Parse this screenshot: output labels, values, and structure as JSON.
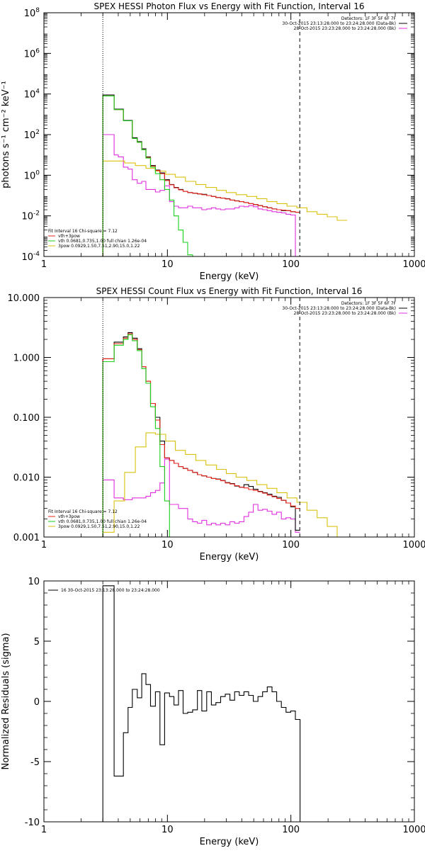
{
  "colors": {
    "data": "#000000",
    "total": "#e8231a",
    "vth": "#1bd01b",
    "bpow": "#d9c20f",
    "bk": "#e02fe0"
  },
  "chart_data": [
    {
      "type": "line",
      "title": "SPEX HESSI Photon Flux vs Energy with Fit Function, Interval 16",
      "xlabel": "Energy (keV)",
      "ylabel": "photons s⁻¹ cm⁻² keV⁻¹",
      "xscale": "log",
      "yscale": "log",
      "xlim": [
        1,
        1000
      ],
      "ylim": [
        0.0001,
        100000000
      ],
      "xticks": [
        {
          "v": 1,
          "label": "1"
        },
        {
          "v": 10,
          "label": "10"
        },
        {
          "v": 100,
          "label": "100"
        },
        {
          "v": 1000,
          "label": "1000"
        }
      ],
      "yticks": [
        {
          "v": 0.0001,
          "base": "10",
          "exp": "-4"
        },
        {
          "v": 0.01,
          "base": "10",
          "exp": "-2"
        },
        {
          "v": 1,
          "base": "10",
          "exp": "0"
        },
        {
          "v": 100,
          "base": "10",
          "exp": "2"
        },
        {
          "v": 10000,
          "base": "10",
          "exp": "4"
        },
        {
          "v": 1000000,
          "base": "10",
          "exp": "6"
        },
        {
          "v": 100000000,
          "base": "10",
          "exp": "8"
        }
      ],
      "vlines": [
        {
          "x": 3.0,
          "style": "dotted"
        },
        {
          "x": 118,
          "style": "dashed"
        }
      ],
      "header_lines": [
        {
          "text": "Detectors: 1F 3F 5F 6F 7F",
          "color": "data"
        },
        {
          "text": "30-Oct-2015 23:13:28.000 to 23:24:28.000 (Data-Bk)",
          "color": "data"
        },
        {
          "text": "28-Oct-2015 23:23:28.000 to 23:24:28.000 (Bk)",
          "color": "bk"
        }
      ],
      "legend_lines": [
        {
          "text": "Fit Interval 16   Chi-square = 7.12",
          "color": "data"
        },
        {
          "text": "vth+3pow",
          "color": "total"
        },
        {
          "text": "vth 0.0681,0.735,1.00  full chian 1.26e-04",
          "color": "vth"
        },
        {
          "text": "3pow 0.0929,1.50,7.51,2.90,15.0,1.22",
          "color": "bpow"
        }
      ],
      "edges": [
        3.0,
        3.3,
        3.7,
        4.0,
        4.4,
        4.8,
        5.2,
        5.7,
        6.2,
        6.7,
        7.3,
        8.0,
        8.7,
        9.5,
        10.4,
        11.3,
        12.3,
        13.4,
        14.6,
        16.0,
        17.5,
        19.0,
        20.8,
        22.7,
        24.7,
        27.0,
        29.4,
        32.1,
        35.0,
        38.2,
        41.7,
        45.5,
        49.6,
        54.1,
        59.0,
        64.4,
        70.3,
        76.7,
        83.7,
        91.3,
        99.6,
        108.7,
        118.6
      ],
      "series": [
        {
          "id": "data",
          "color": "data",
          "values": [
            9000,
            9000,
            1800,
            1800,
            500,
            500,
            70,
            45,
            20,
            8,
            3,
            1.8,
            1.3,
            0.6,
            0.35,
            0.25,
            0.2,
            0.16,
            0.14,
            0.13,
            0.12,
            0.115,
            0.1,
            0.09,
            0.08,
            0.075,
            0.07,
            0.06,
            0.055,
            0.05,
            0.045,
            0.04,
            0.036,
            0.032,
            0.028,
            0.025,
            0.022,
            0.02,
            0.018,
            0.018,
            0.016,
            0.015
          ]
        },
        {
          "id": "total",
          "color": "total",
          "values": [
            8000,
            8000,
            1700,
            1700,
            480,
            480,
            65,
            42,
            18,
            7.5,
            2.8,
            1.7,
            1.2,
            0.55,
            0.34,
            0.24,
            0.19,
            0.16,
            0.14,
            0.13,
            0.12,
            0.11,
            0.1,
            0.09,
            0.08,
            0.075,
            0.068,
            0.06,
            0.054,
            0.05,
            0.045,
            0.04,
            0.036,
            0.032,
            0.028,
            0.025,
            0.022,
            0.02,
            0.019,
            0.018,
            0.016,
            0.015
          ]
        },
        {
          "id": "vth",
          "color": "vth",
          "values": [
            8000,
            8000,
            1700,
            1700,
            480,
            480,
            65,
            42,
            18,
            7,
            2.5,
            1.2,
            0.6,
            0.2,
            0.06,
            0.01,
            0.002,
            0.0005,
            0.00012,
            3e-05
          ]
        },
        {
          "id": "bk",
          "color": "bk",
          "values": [
            100,
            100,
            10,
            8,
            2.5,
            2.0,
            0.6,
            0.4,
            0.5,
            0.2,
            0.2,
            0.15,
            0.18,
            0.3,
            0.05,
            0.03,
            0.025,
            0.025,
            0.03,
            0.025,
            0.025,
            0.02,
            0.022,
            0.025,
            0.022,
            0.02,
            0.022,
            0.022,
            0.025,
            0.03,
            0.028,
            0.032,
            0.028,
            0.022,
            0.02,
            0.018,
            0.016,
            0.015,
            0.014,
            0.012,
            0.011,
            0.0001
          ]
        }
      ],
      "bpow": {
        "edges": [
          3.0,
          3.7,
          4.5,
          5.5,
          6.7,
          8.0,
          9.7,
          11.6,
          14.0,
          17.0,
          20.5,
          25.0,
          30.0,
          36.0,
          44.0,
          53.0,
          64.0,
          77.0,
          93.0,
          112.0,
          135.0,
          163.0,
          197.0,
          237.0,
          286.0
        ],
        "values": [
          5,
          5,
          4,
          3,
          2.2,
          1.6,
          1.1,
          0.8,
          0.5,
          0.35,
          0.25,
          0.18,
          0.14,
          0.11,
          0.09,
          0.07,
          0.05,
          0.04,
          0.03,
          0.025,
          0.016,
          0.012,
          0.009,
          0.006
        ]
      }
    },
    {
      "type": "line",
      "title": "SPEX HESSI Count Flux vs Energy with Fit Function, Interval 16",
      "xlabel": "Energy (keV)",
      "ylabel": "",
      "xscale": "log",
      "yscale": "log",
      "xlim": [
        1,
        1000
      ],
      "ylim": [
        0.001,
        10
      ],
      "xticks": [
        {
          "v": 1,
          "label": "1"
        },
        {
          "v": 10,
          "label": "10"
        },
        {
          "v": 100,
          "label": "100"
        },
        {
          "v": 1000,
          "label": "1000"
        }
      ],
      "yticks": [
        {
          "v": 0.001,
          "label": "0.001"
        },
        {
          "v": 0.01,
          "label": "0.010"
        },
        {
          "v": 0.1,
          "label": "0.100"
        },
        {
          "v": 1,
          "label": "1.000"
        },
        {
          "v": 10,
          "label": "10.000"
        }
      ],
      "vlines": [
        {
          "x": 3.0,
          "style": "dotted"
        },
        {
          "x": 118,
          "style": "dashed"
        }
      ],
      "header_lines": [
        {
          "text": "Detectors: 1F 3F 5F 6F 7F",
          "color": "data"
        },
        {
          "text": "30-Oct-2015 23:13:28.000 to 23:24:28.000 (Data-Bk)",
          "color": "data"
        },
        {
          "text": "28-Oct-2015 23:23:28.000 to 23:24:28.000 (Bk)",
          "color": "bk"
        }
      ],
      "legend_lines": [
        {
          "text": "Fit Interval 16   Chi-square = 7.12",
          "color": "data"
        },
        {
          "text": "vth+3pow",
          "color": "total"
        },
        {
          "text": "vth 0.0681,0.735,1.00  full chian 1.26e-04",
          "color": "vth"
        },
        {
          "text": "3pow 0.0929,1.50,7.51,2.90,15.0,1.22",
          "color": "bpow"
        }
      ],
      "edges": [
        3.0,
        3.3,
        3.7,
        4.0,
        4.4,
        4.8,
        5.2,
        5.7,
        6.2,
        6.7,
        7.3,
        8.0,
        8.7,
        9.5,
        10.4,
        11.3,
        12.3,
        13.4,
        14.6,
        16.0,
        17.5,
        19.0,
        20.8,
        22.7,
        24.7,
        27.0,
        29.4,
        32.1,
        35.0,
        38.2,
        41.7,
        45.5,
        49.6,
        54.1,
        59.0,
        64.4,
        70.3,
        76.7,
        83.7,
        91.3,
        99.6,
        108.7,
        118.6
      ],
      "series": [
        {
          "id": "data",
          "color": "data",
          "values": [
            0.95,
            0.95,
            1.8,
            1.8,
            2.2,
            2.6,
            2.1,
            1.4,
            0.7,
            0.4,
            0.17,
            0.1,
            0.04,
            0.021,
            0.019,
            0.017,
            0.015,
            0.014,
            0.013,
            0.012,
            0.011,
            0.0105,
            0.01,
            0.0095,
            0.0093,
            0.0088,
            0.0081,
            0.0078,
            0.0071,
            0.0068,
            0.0075,
            0.007,
            0.0063,
            0.0058,
            0.0055,
            0.0052,
            0.0048,
            0.0046,
            0.0041,
            0.0037,
            0.0032,
            0.0013
          ]
        },
        {
          "id": "total",
          "color": "total",
          "values": [
            0.95,
            0.95,
            1.7,
            1.7,
            2.1,
            2.5,
            2.0,
            1.35,
            0.7,
            0.4,
            0.17,
            0.09,
            0.035,
            0.021,
            0.019,
            0.017,
            0.015,
            0.014,
            0.013,
            0.012,
            0.011,
            0.0105,
            0.01,
            0.0095,
            0.0092,
            0.0087,
            0.008,
            0.0077,
            0.0072,
            0.0068,
            0.0066,
            0.0062,
            0.006,
            0.0057,
            0.0054,
            0.005,
            0.0047,
            0.0044,
            0.0041,
            0.0037,
            0.0033,
            0.003
          ]
        },
        {
          "id": "vth",
          "color": "vth",
          "values": [
            0.85,
            0.85,
            1.6,
            1.6,
            2.0,
            2.4,
            1.9,
            1.3,
            0.65,
            0.37,
            0.15,
            0.065,
            0.015,
            0.004,
            0.0009
          ]
        },
        {
          "id": "bk",
          "color": "bk",
          "values": [
            0.009,
            0.009,
            0.0045,
            0.0045,
            0.0042,
            0.0042,
            0.0045,
            0.0045,
            0.0045,
            0.0048,
            0.0055,
            0.006,
            0.008,
            0.02,
            0.0035,
            0.0035,
            0.003,
            0.003,
            0.002,
            0.0018,
            0.0017,
            0.0019,
            0.0016,
            0.0017,
            0.0016,
            0.0017,
            0.0016,
            0.0018,
            0.0017,
            0.0018,
            0.0022,
            0.0026,
            0.0035,
            0.0028,
            0.0029,
            0.0027,
            0.0024,
            0.0026,
            0.002,
            0.0021,
            0.002,
            0.0012
          ]
        }
      ],
      "bpow": {
        "edges": [
          3.0,
          3.7,
          4.5,
          5.5,
          6.7,
          8.0,
          9.7,
          11.6,
          14.0,
          17.0,
          20.5,
          25.0,
          30.0,
          36.0,
          44.0,
          53.0,
          64.0,
          77.0,
          93.0,
          112.0,
          135.0,
          163.0,
          197.0,
          237.0,
          286.0
        ],
        "values": [
          0.0012,
          0.004,
          0.012,
          0.032,
          0.055,
          0.052,
          0.04,
          0.028,
          0.024,
          0.019,
          0.016,
          0.0135,
          0.0115,
          0.01,
          0.0088,
          0.0075,
          0.0065,
          0.0055,
          0.0045,
          0.0038,
          0.0028,
          0.0021,
          0.0015,
          0.001
        ]
      }
    },
    {
      "type": "line",
      "title": "",
      "xlabel": "Energy (keV)",
      "ylabel": "Normalized Residuals (sigma)",
      "xscale": "log",
      "yscale": "linear",
      "xlim": [
        1,
        1000
      ],
      "ylim": [
        -10,
        10
      ],
      "xticks": [
        {
          "v": 1,
          "label": "1"
        },
        {
          "v": 10,
          "label": "10"
        },
        {
          "v": 100,
          "label": "100"
        },
        {
          "v": 1000,
          "label": "1000"
        }
      ],
      "yticks": [
        {
          "v": -10,
          "label": "-10"
        },
        {
          "v": -5,
          "label": "-5"
        },
        {
          "v": 0,
          "label": "0"
        },
        {
          "v": 5,
          "label": "5"
        },
        {
          "v": 10,
          "label": "10"
        }
      ],
      "legend_text": "16  30-Oct-2015 23:13:28.000 to 23:24:28.000",
      "edges": [
        3.0,
        3.3,
        3.7,
        4.0,
        4.4,
        4.8,
        5.2,
        5.7,
        6.2,
        6.7,
        7.3,
        8.0,
        8.7,
        9.5,
        10.4,
        11.3,
        12.3,
        13.4,
        14.6,
        16.0,
        17.5,
        19.0,
        20.8,
        22.7,
        24.7,
        27.0,
        29.4,
        32.1,
        35.0,
        38.2,
        41.7,
        45.5,
        49.6,
        54.1,
        59.0,
        64.4,
        70.3,
        76.7,
        83.7,
        91.3,
        99.6,
        108.7,
        118.6
      ],
      "series": [
        {
          "id": "residuals",
          "color": "data",
          "values": [
            9.6,
            9.6,
            -6.2,
            -6.2,
            -2.6,
            -0.5,
            1.0,
            0.3,
            2.3,
            1.4,
            -0.4,
            0.8,
            -3.6,
            0.7,
            0.4,
            -0.3,
            0.9,
            -1.0,
            -0.9,
            -0.7,
            0.9,
            -0.8,
            0.8,
            -0.3,
            -0.1,
            0.4,
            0.6,
            0.1,
            0.8,
            0.5,
            0.8,
            0.5,
            0.0,
            0.4,
            0.8,
            1.2,
            0.8,
            0.0,
            -0.5,
            -0.9,
            -0.8,
            -1.5
          ]
        }
      ]
    }
  ]
}
